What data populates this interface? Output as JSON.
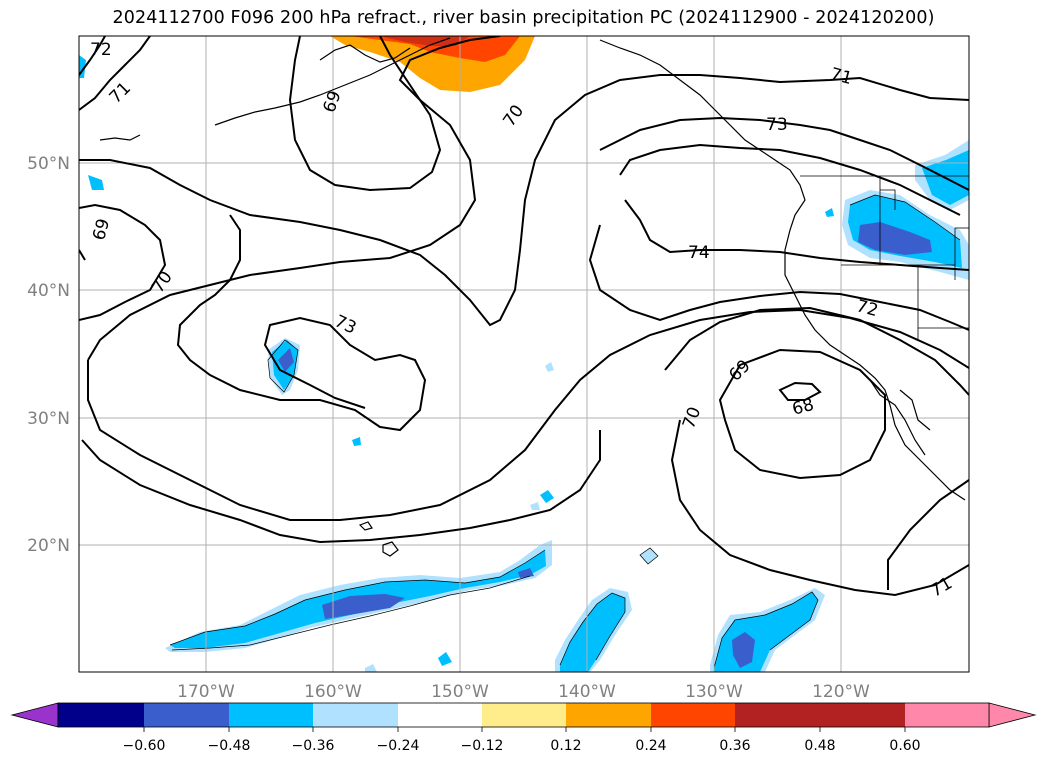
{
  "title": "2024112700 F096 200 hPa refract., river basin precipitation PC (2024112900 - 2024120200)",
  "map": {
    "latitude_labels": [
      "50°N",
      "40°N",
      "30°N",
      "20°N"
    ],
    "longitude_labels": [
      "170°W",
      "160°W",
      "150°W",
      "140°W",
      "130°W",
      "120°W"
    ],
    "contour_labels": [
      "72",
      "71",
      "69",
      "69",
      "70",
      "70",
      "73",
      "74",
      "73",
      "71",
      "72",
      "69",
      "70",
      "68",
      "71"
    ],
    "contour_color": "#000000",
    "gridline_color": "#b0b0b0"
  },
  "colorbar": {
    "ticks": [
      "−0.60",
      "−0.48",
      "−0.36",
      "−0.24",
      "−0.12",
      "0.12",
      "0.24",
      "0.36",
      "0.48",
      "0.60"
    ],
    "colors": [
      "#9933cc",
      "#00008b",
      "#3a5fcd",
      "#00bfff",
      "#b0e2ff",
      "#ffffff",
      "#ffec8b",
      "#ffa500",
      "#ff4500",
      "#b22222",
      "#ff88aa"
    ]
  }
}
